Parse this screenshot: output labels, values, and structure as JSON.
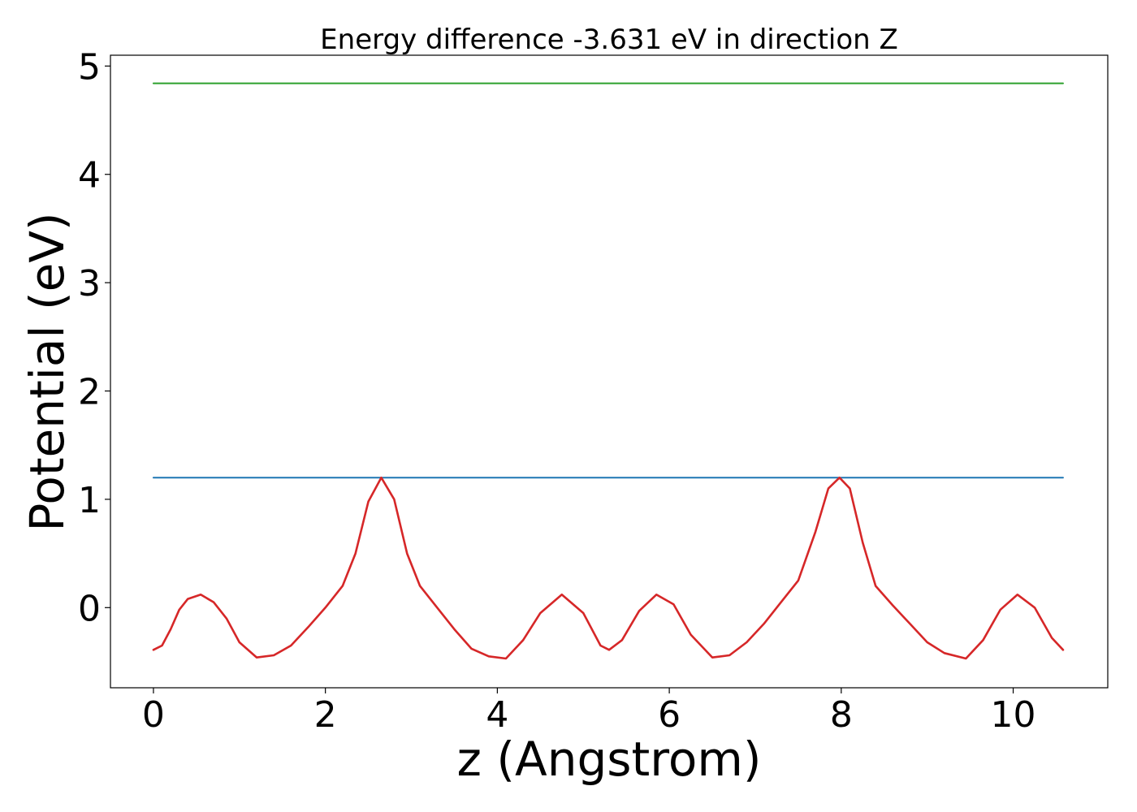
{
  "chart_data": {
    "type": "line",
    "title": "Energy difference -3.631 eV in direction Z",
    "xlabel": "z (Angstrom)",
    "ylabel": "Potential (eV)",
    "xlim": [
      -0.5,
      11.1
    ],
    "ylim": [
      -0.74,
      5.1
    ],
    "xticks": [
      0,
      2,
      4,
      6,
      8,
      10
    ],
    "yticks": [
      0,
      1,
      2,
      3,
      4,
      5
    ],
    "grid": false,
    "legend": "none",
    "series": [
      {
        "color": "#2ca02c",
        "x": [
          0,
          10.58
        ],
        "y": [
          4.84,
          4.84
        ]
      },
      {
        "color": "#1f77b4",
        "x": [
          0,
          10.58
        ],
        "y": [
          1.2,
          1.2
        ]
      },
      {
        "color": "#d62728",
        "x": [
          0,
          0.1,
          0.2,
          0.3,
          0.4,
          0.55,
          0.7,
          0.85,
          1.0,
          1.2,
          1.4,
          1.6,
          1.8,
          2.0,
          2.2,
          2.35,
          2.5,
          2.65,
          2.8,
          2.95,
          3.1,
          3.3,
          3.5,
          3.7,
          3.9,
          4.1,
          4.3,
          4.5,
          4.75,
          5.0,
          5.2,
          5.3,
          5.45,
          5.65,
          5.85,
          6.05,
          6.25,
          6.5,
          6.7,
          6.9,
          7.1,
          7.3,
          7.5,
          7.7,
          7.85,
          7.98,
          8.1,
          8.25,
          8.4,
          8.6,
          8.8,
          9.0,
          9.2,
          9.45,
          9.65,
          9.85,
          10.05,
          10.25,
          10.45,
          10.58
        ],
        "y": [
          -0.39,
          -0.35,
          -0.2,
          -0.02,
          0.08,
          0.12,
          0.05,
          -0.1,
          -0.32,
          -0.46,
          -0.44,
          -0.35,
          -0.18,
          0.0,
          0.2,
          0.5,
          0.98,
          1.2,
          1.0,
          0.5,
          0.2,
          0.0,
          -0.2,
          -0.38,
          -0.45,
          -0.47,
          -0.3,
          -0.05,
          0.12,
          -0.05,
          -0.35,
          -0.39,
          -0.3,
          -0.03,
          0.12,
          0.03,
          -0.25,
          -0.46,
          -0.44,
          -0.32,
          -0.15,
          0.05,
          0.25,
          0.7,
          1.1,
          1.2,
          1.1,
          0.6,
          0.2,
          0.02,
          -0.15,
          -0.32,
          -0.42,
          -0.47,
          -0.3,
          -0.02,
          0.12,
          0.0,
          -0.28,
          -0.39
        ]
      }
    ]
  }
}
